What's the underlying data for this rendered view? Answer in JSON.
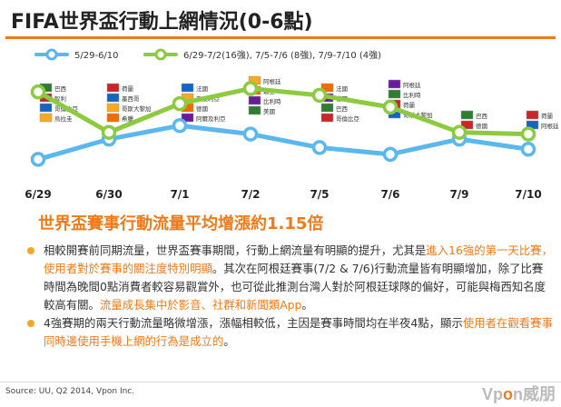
{
  "title": "FIFA世界盃行動上網情況(0-6點)",
  "headline": "世界盃賽事行動流量平均增漲約1.15倍",
  "bullets": [
    {
      "parts": [
        {
          "text": "相較開賽前同期流量，世界盃賽事期間，行動上網流量有明顯的提升，尤其是",
          "hl": false
        },
        {
          "text": "進入16強的第一天比賽，使用者對於賽事的關注度特別明顯",
          "hl": true
        },
        {
          "text": "。其次在阿根廷賽事(7/2 & 7/6)行動流量皆有明顯增加，除了比賽時間為晚間0點消費者較容易觀賞外，也可從此推測台灣人對於阿根廷球隊的偏好，可能與梅西知名度較高有關。",
          "hl": false
        },
        {
          "text": "流量成長集中於影音、社群和新聞類App",
          "hl": true
        },
        {
          "text": "。",
          "hl": false
        }
      ]
    },
    {
      "parts": [
        {
          "text": "4強賽期的兩天行動流量略微增漲，漲幅相較低，主因是賽事時間均在半夜4點，顯示",
          "hl": false
        },
        {
          "text": "使用者在觀看賽事同時邊使用手機上網的行為是成立的",
          "hl": true
        },
        {
          "text": "。",
          "hl": false
        }
      ]
    }
  ],
  "source": "Source: UU, Q2 2014, Vpon Inc.",
  "logo": {
    "prefix": "Vp",
    "o": "o",
    "suffix": "n威朋"
  },
  "colors": {
    "baseline": "#5bb8ec",
    "world_cup": "#8ccb3f",
    "accent": "#f07a1a",
    "bullet": "#f5a623"
  },
  "chart_data": {
    "type": "line",
    "categories": [
      "6/29",
      "6/30",
      "7/1",
      "7/2",
      "7/5",
      "7/6",
      "7/9",
      "7/10"
    ],
    "series": [
      {
        "name": "5/29-6/10",
        "values": [
          1.0,
          1.12,
          1.2,
          1.15,
          1.07,
          1.03,
          1.12,
          1.06
        ]
      },
      {
        "name": "6/29-7/2(16強), 7/5-7/6 (8強), 7/9-7/10 (4強)",
        "values": [
          1.4,
          1.16,
          1.33,
          1.42,
          1.38,
          1.31,
          1.16,
          1.15
        ]
      }
    ],
    "match_labels": [
      [
        "巴西",
        "智利",
        "哥倫比亞",
        "烏拉圭"
      ],
      [
        "荷蘭",
        "墨西哥",
        "哥斯大黎加",
        "希臘"
      ],
      [
        "法國",
        "奈及利亞",
        "德國",
        "阿爾及利亞"
      ],
      [
        "阿根廷",
        "瑞士",
        "比利時",
        "美國"
      ],
      [
        "法國",
        "德國",
        "巴西",
        "哥倫比亞"
      ],
      [
        "阿根廷",
        "比利時",
        "荷蘭",
        "哥斯大黎加"
      ],
      [
        "巴西",
        "德國"
      ],
      [
        "荷蘭",
        "阿根廷"
      ]
    ],
    "title": "",
    "xlabel": "",
    "ylabel": "",
    "ylim": [
      0.9,
      1.6
    ],
    "grid": false,
    "legend_placement": "top"
  }
}
